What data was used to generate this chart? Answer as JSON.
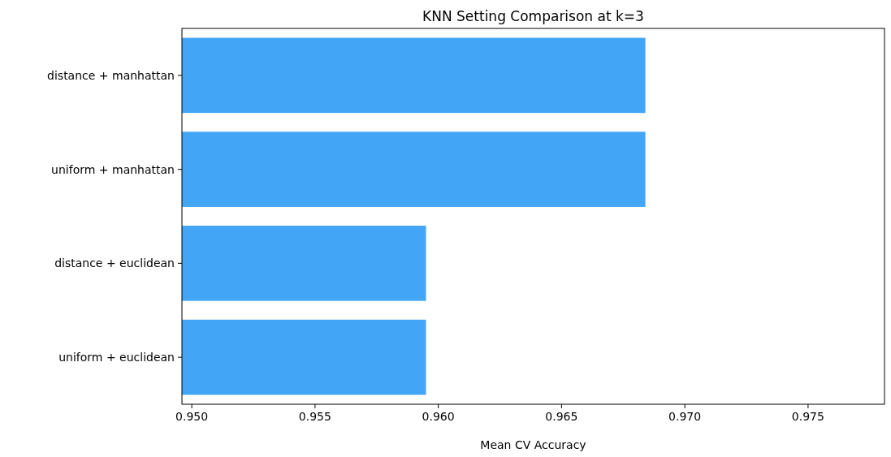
{
  "chart_data": {
    "type": "bar",
    "orientation": "horizontal",
    "title": "KNN Setting Comparison at k=3",
    "xlabel": "Mean CV Accuracy",
    "categories": [
      "distance + manhattan",
      "uniform + manhattan",
      "distance + euclidean",
      "uniform + euclidean"
    ],
    "values": [
      0.9684,
      0.9684,
      0.9595,
      0.9595
    ],
    "color": "#42a5f5",
    "xlim": [
      0.9496,
      0.9781
    ],
    "xticks": [
      {
        "value": 0.95,
        "label": "0.950"
      },
      {
        "value": 0.955,
        "label": "0.955"
      },
      {
        "value": 0.96,
        "label": "0.960"
      },
      {
        "value": 0.965,
        "label": "0.965"
      },
      {
        "value": 0.97,
        "label": "0.970"
      },
      {
        "value": 0.975,
        "label": "0.975"
      }
    ]
  }
}
